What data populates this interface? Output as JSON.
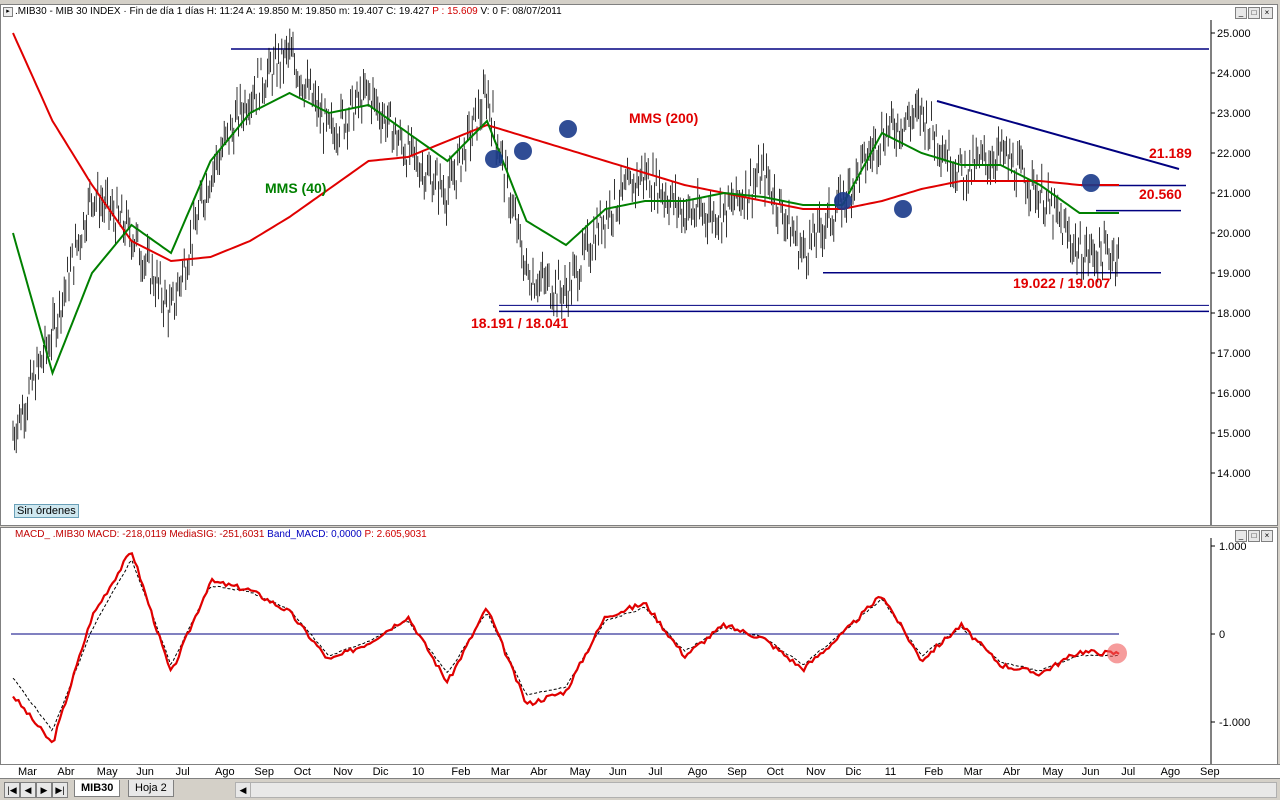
{
  "header": {
    "symbol": ".MIB30",
    "info": "MIB 30 INDEX · Fin de día 1 días  H: 11:24  A: 19.850  M: 19.850  m: 19.407  C: 19.427",
    "p_value": "P : 15.609",
    "tail": "V: 0  F: 08/07/2011"
  },
  "macd_header": {
    "label": "MACD_ .MIB30  MACD: -218,0119  MediaSIG: -251,6031",
    "band": "Band_MACD: 0,0000",
    "p_value": "P: 2.605,9031"
  },
  "sin_ordenes": "Sin órdenes",
  "annotations": {
    "mms40": "MMS (40)",
    "mms200": "MMS (200)",
    "support1": "18.191 / 18.041",
    "support2": "19.022 / 19.007",
    "res1": "21.189",
    "res2": "20.560"
  },
  "tabs": [
    "MIB30",
    "Hoja 2"
  ],
  "colors": {
    "price": "#000000",
    "mms40": "#008000",
    "mms200": "#e00000",
    "lines": "#000080",
    "macd": "#e00000",
    "signal": "#000000",
    "dots": "#1a3a8a"
  },
  "chart_data": [
    {
      "type": "line",
      "title": "",
      "y_ticks": [
        "25.000",
        "24.000",
        "23.000",
        "22.000",
        "21.000",
        "20.000",
        "19.000",
        "18.000",
        "17.000",
        "16.000",
        "15.000",
        "14.000"
      ],
      "ylim": [
        13000,
        25200
      ],
      "x_labels": [
        "Mar",
        "Abr",
        "May",
        "Jun",
        "Jul",
        "Ago",
        "Sep",
        "Oct",
        "Nov",
        "Dic",
        "10",
        "Feb",
        "Mar",
        "Abr",
        "May",
        "Jun",
        "Jul",
        "Ago",
        "Sep",
        "Oct",
        "Nov",
        "Dic",
        "11",
        "Feb",
        "Mar",
        "Abr",
        "May",
        "Jun",
        "Jul",
        "Ago",
        "Sep"
      ],
      "series": [
        {
          "name": "price",
          "x": [
            0,
            1,
            2,
            3,
            4,
            5,
            6,
            7,
            8,
            9,
            10,
            11,
            12,
            13,
            14,
            15,
            16,
            17,
            18,
            19,
            20,
            21,
            22,
            23,
            24,
            25,
            26,
            27,
            28
          ],
          "values": [
            15000,
            17500,
            21000,
            20000,
            18000,
            21500,
            23500,
            24500,
            22500,
            23500,
            22000,
            21000,
            23500,
            19000,
            18500,
            20500,
            21500,
            20500,
            20500,
            21500,
            19500,
            20800,
            22500,
            23000,
            21500,
            22000,
            21000,
            19500,
            19500
          ]
        },
        {
          "name": "MMS (40)",
          "x": [
            0,
            1,
            2,
            3,
            4,
            5,
            6,
            7,
            8,
            9,
            10,
            11,
            12,
            13,
            14,
            15,
            16,
            17,
            18,
            19,
            20,
            21,
            22,
            23,
            24,
            25,
            26,
            27,
            28
          ],
          "values": [
            20000,
            16500,
            19000,
            20200,
            19500,
            21800,
            23000,
            23500,
            23000,
            23200,
            22500,
            21800,
            22800,
            20300,
            19700,
            20600,
            20800,
            20800,
            21000,
            20900,
            20700,
            20700,
            22500,
            22000,
            21700,
            21700,
            21200,
            20500,
            20500
          ]
        },
        {
          "name": "MMS (200)",
          "x": [
            0,
            1,
            2,
            3,
            4,
            5,
            6,
            7,
            8,
            9,
            10,
            11,
            12,
            13,
            14,
            15,
            16,
            17,
            18,
            19,
            20,
            21,
            22,
            23,
            24,
            25,
            26,
            27,
            28
          ],
          "values": [
            25000,
            22800,
            21200,
            19800,
            19300,
            19400,
            19800,
            20400,
            21100,
            21800,
            21900,
            22300,
            22700,
            22400,
            22100,
            21800,
            21500,
            21200,
            21000,
            20800,
            20600,
            20600,
            20800,
            21100,
            21300,
            21300,
            21300,
            21200,
            21200
          ]
        }
      ],
      "levels": [
        24600,
        21189,
        20560,
        19007,
        18191,
        18041
      ]
    },
    {
      "type": "line",
      "title": "",
      "y_ticks": [
        "1.000",
        "0",
        "-1.000"
      ],
      "ylim": [
        -1300,
        1100
      ],
      "series": [
        {
          "name": "MACD",
          "x": [
            0,
            1,
            2,
            3,
            4,
            5,
            6,
            7,
            8,
            9,
            10,
            11,
            12,
            13,
            14,
            15,
            16,
            17,
            18,
            19,
            20,
            21,
            22,
            23,
            24,
            25,
            26,
            27,
            28
          ],
          "values": [
            -700,
            -1250,
            200,
            950,
            -450,
            600,
            500,
            250,
            -300,
            -100,
            200,
            -550,
            300,
            -800,
            -650,
            200,
            350,
            -250,
            100,
            -50,
            -400,
            0,
            450,
            -300,
            100,
            -350,
            -450,
            -200,
            -220
          ]
        },
        {
          "name": "MediaSIG",
          "x": [
            0,
            1,
            2,
            3,
            4,
            5,
            6,
            7,
            8,
            9,
            10,
            11,
            12,
            13,
            14,
            15,
            16,
            17,
            18,
            19,
            20,
            21,
            22,
            23,
            24,
            25,
            26,
            27,
            28
          ],
          "values": [
            -500,
            -1100,
            50,
            850,
            -350,
            550,
            480,
            280,
            -250,
            -80,
            150,
            -450,
            250,
            -700,
            -600,
            150,
            300,
            -200,
            80,
            -40,
            -350,
            20,
            400,
            -250,
            80,
            -320,
            -420,
            -240,
            -250
          ]
        }
      ]
    }
  ]
}
